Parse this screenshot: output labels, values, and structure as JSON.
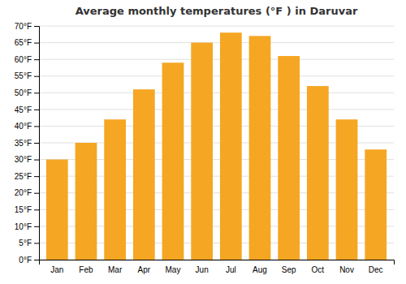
{
  "chart_data": {
    "type": "bar",
    "title": "Average monthly temperatures (°F ) in Daruvar",
    "categories": [
      "Jan",
      "Feb",
      "Mar",
      "Apr",
      "May",
      "Jun",
      "Jul",
      "Aug",
      "Sep",
      "Oct",
      "Nov",
      "Dec"
    ],
    "values": [
      30,
      35,
      42,
      51,
      59,
      65,
      68,
      67,
      61,
      52,
      42,
      33
    ],
    "color": "#F5A623",
    "ylim": [
      0,
      70
    ],
    "yticks": [
      {
        "value": 0,
        "label": "0°F"
      },
      {
        "value": 5,
        "label": "5°F"
      },
      {
        "value": 10,
        "label": "10°F"
      },
      {
        "value": 15,
        "label": "15°F"
      },
      {
        "value": 20,
        "label": "20°F"
      },
      {
        "value": 25,
        "label": "25°F"
      },
      {
        "value": 30,
        "label": "30°F"
      },
      {
        "value": 35,
        "label": "35°F"
      },
      {
        "value": 40,
        "label": "40°F"
      },
      {
        "value": 45,
        "label": "45°F"
      },
      {
        "value": 50,
        "label": "50°F"
      },
      {
        "value": 55,
        "label": "55°F"
      },
      {
        "value": 60,
        "label": "60°F"
      },
      {
        "value": 65,
        "label": "65°F"
      },
      {
        "value": 70,
        "label": "70°F"
      }
    ],
    "grid": true
  }
}
